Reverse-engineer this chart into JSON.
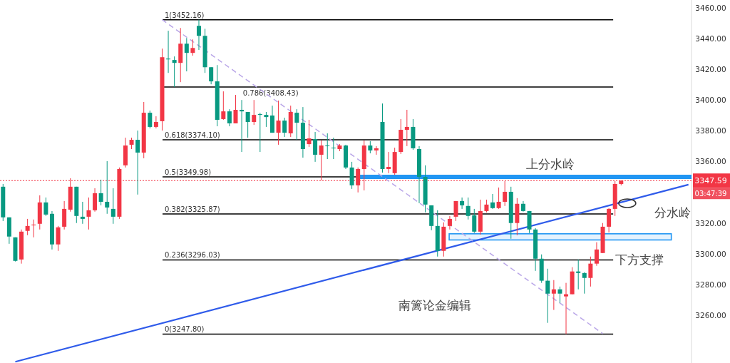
{
  "chart_data": {
    "type": "candlestick",
    "categories": [
      null,
      null,
      null,
      null,
      null,
      null,
      null,
      null,
      null,
      null,
      null,
      null,
      null,
      null,
      null,
      null,
      null,
      null,
      null,
      null,
      null,
      null,
      null,
      null,
      null,
      null,
      null,
      null,
      null,
      null,
      null,
      null,
      null,
      null,
      null,
      null,
      null,
      null,
      null,
      null,
      null,
      null,
      null,
      null,
      null,
      null,
      null,
      null,
      null,
      null,
      null,
      null,
      null,
      null,
      null,
      null,
      null,
      null,
      null,
      null,
      null,
      null,
      null,
      null,
      null,
      null,
      null,
      null,
      null,
      null,
      null,
      null,
      null,
      null,
      null,
      null,
      null,
      null,
      null,
      null,
      null,
      null,
      null,
      null,
      null,
      null,
      null,
      null,
      null,
      null,
      null,
      null,
      null,
      null,
      null,
      null,
      null,
      null,
      null,
      null,
      null,
      null,
      null,
      null,
      null,
      null,
      null,
      null,
      null,
      null,
      null,
      null,
      null
    ],
    "ohlc": [
      [
        3343.6,
        3345.4,
        3321.3,
        3323.7
      ],
      [
        3323.7,
        3323.7,
        3306.5,
        3311.2
      ],
      [
        3310.7,
        3310.7,
        3295.0,
        3295.4
      ],
      [
        3296.3,
        3315.8,
        3293.6,
        3314.4
      ],
      [
        3314.9,
        3322.7,
        3312.1,
        3318.1
      ],
      [
        3318.6,
        3322.3,
        3310.7,
        3319.0
      ],
      [
        3319.5,
        3338.0,
        3315.8,
        3333.4
      ],
      [
        3333.4,
        3336.6,
        3324.6,
        3325.5
      ],
      [
        3326.0,
        3327.8,
        3302.8,
        3306.1
      ],
      [
        3306.1,
        3318.1,
        3301.9,
        3317.2
      ],
      [
        3317.6,
        3334.3,
        3315.8,
        3329.2
      ],
      [
        3328.7,
        3349.1,
        3327.4,
        3343.6
      ],
      [
        3343.6,
        3343.6,
        3320.0,
        3324.6
      ],
      [
        3324.1,
        3333.8,
        3319.5,
        3322.7
      ],
      [
        3324.1,
        3336.6,
        3315.8,
        3328.3
      ],
      [
        3328.3,
        3342.6,
        3327.4,
        3339.4
      ],
      [
        3339.4,
        3348.2,
        3331.5,
        3333.8
      ],
      [
        3333.8,
        3360.2,
        3326.0,
        3330.1
      ],
      [
        3329.2,
        3342.6,
        3319.5,
        3324.1
      ],
      [
        3324.1,
        3356.1,
        3322.7,
        3355.1
      ],
      [
        3357.5,
        3375.5,
        3356.1,
        3370.4
      ],
      [
        3370.9,
        3375.5,
        3368.1,
        3374.1
      ],
      [
        3374.1,
        3380.1,
        3338.5,
        3365.8
      ],
      [
        3365.8,
        3398.7,
        3362.1,
        3391.7
      ],
      [
        3391.7,
        3393.1,
        3381.5,
        3382.5
      ],
      [
        3382.5,
        3389.4,
        3381.5,
        3385.7
      ],
      [
        3386.2,
        3433.4,
        3380.1,
        3427.8
      ],
      [
        3426.9,
        3445.0,
        3417.6,
        3426.4
      ],
      [
        3426.0,
        3428.3,
        3408.4,
        3424.1
      ],
      [
        3424.1,
        3446.8,
        3411.6,
        3436.6
      ],
      [
        3436.6,
        3440.3,
        3418.6,
        3430.6
      ],
      [
        3430.6,
        3439.4,
        3428.8,
        3433.8
      ],
      [
        3448.2,
        3452.2,
        3432.5,
        3441.7
      ],
      [
        3441.7,
        3446.3,
        3417.6,
        3421.3
      ],
      [
        3421.3,
        3421.3,
        3410.2,
        3412.1
      ],
      [
        3412.1,
        3422.7,
        3382.9,
        3387.1
      ],
      [
        3387.6,
        3405.6,
        3387.1,
        3392.6
      ],
      [
        3392.6,
        3394.0,
        3382.9,
        3384.8
      ],
      [
        3384.8,
        3403.3,
        3384.8,
        3393.6
      ],
      [
        3393.6,
        3400.0,
        3366.2,
        3392.6
      ],
      [
        3392.2,
        3392.2,
        3375.5,
        3385.7
      ],
      [
        3385.7,
        3400.0,
        3383.8,
        3390.3
      ],
      [
        3390.8,
        3391.7,
        3366.2,
        3390.3
      ],
      [
        3390.3,
        3392.2,
        3382.5,
        3388.9
      ],
      [
        3389.9,
        3396.3,
        3378.7,
        3378.7
      ],
      [
        3378.7,
        3399.6,
        3370.9,
        3386.6
      ],
      [
        3386.6,
        3388.5,
        3376.0,
        3378.7
      ],
      [
        3378.3,
        3396.3,
        3376.0,
        3392.2
      ],
      [
        3391.7,
        3394.0,
        3374.1,
        3385.2
      ],
      [
        3385.2,
        3395.4,
        3362.5,
        3368.1
      ],
      [
        3371.3,
        3387.1,
        3369.5,
        3375.0
      ],
      [
        3374.6,
        3379.2,
        3359.8,
        3364.4
      ],
      [
        3364.4,
        3373.7,
        3347.7,
        3370.4
      ],
      [
        3370.4,
        3378.3,
        3361.6,
        3370.0
      ],
      [
        3369.0,
        3375.5,
        3361.6,
        3368.6
      ],
      [
        3368.1,
        3371.3,
        3366.7,
        3370.4
      ],
      [
        3370.4,
        3370.9,
        3355.1,
        3356.1
      ],
      [
        3356.1,
        3359.8,
        3342.2,
        3344.5
      ],
      [
        3344.5,
        3356.1,
        3339.9,
        3355.1
      ],
      [
        3355.1,
        3373.7,
        3341.2,
        3370.4
      ],
      [
        3370.4,
        3373.2,
        3365.3,
        3367.2
      ],
      [
        3367.2,
        3370.0,
        3364.4,
        3368.6
      ],
      [
        3385.7,
        3397.7,
        3352.8,
        3355.1
      ],
      [
        3355.1,
        3366.2,
        3352.4,
        3356.5
      ],
      [
        3352.4,
        3369.0,
        3351.4,
        3366.2
      ],
      [
        3366.2,
        3387.6,
        3364.9,
        3380.6
      ],
      [
        3380.6,
        3393.6,
        3370.0,
        3382.5
      ],
      [
        3382.5,
        3387.6,
        3367.6,
        3368.6
      ],
      [
        3368.1,
        3370.0,
        3332.9,
        3350.0
      ],
      [
        3350.0,
        3357.5,
        3326.9,
        3332.0
      ],
      [
        3331.5,
        3331.5,
        3315.3,
        3318.1
      ],
      [
        3318.1,
        3328.3,
        3298.2,
        3301.9
      ],
      [
        3301.9,
        3320.4,
        3298.2,
        3317.6
      ],
      [
        3318.1,
        3324.6,
        3315.8,
        3322.7
      ],
      [
        3324.1,
        3334.3,
        3321.3,
        3334.3
      ],
      [
        3334.3,
        3336.6,
        3329.2,
        3331.5
      ],
      [
        3331.1,
        3336.6,
        3322.3,
        3324.6
      ],
      [
        3325.0,
        3329.2,
        3313.5,
        3314.4
      ],
      [
        3314.4,
        3335.2,
        3312.5,
        3327.8
      ],
      [
        3327.8,
        3335.2,
        3326.9,
        3332.0
      ],
      [
        3333.4,
        3338.9,
        3329.2,
        3329.7
      ],
      [
        3329.7,
        3343.1,
        3329.2,
        3333.8
      ],
      [
        3333.8,
        3347.3,
        3331.1,
        3340.3
      ],
      [
        3340.3,
        3343.6,
        3309.8,
        3320.0
      ],
      [
        3320.0,
        3336.2,
        3312.1,
        3332.5
      ],
      [
        3332.5,
        3334.3,
        3327.4,
        3327.8
      ],
      [
        3327.8,
        3327.8,
        3313.5,
        3315.8
      ],
      [
        3315.8,
        3316.7,
        3288.9,
        3296.8
      ],
      [
        3296.8,
        3299.6,
        3281.1,
        3282.5
      ],
      [
        3282.5,
        3290.3,
        3255.1,
        3274.1
      ],
      [
        3274.1,
        3282.9,
        3263.5,
        3276.9
      ],
      [
        3276.9,
        3278.7,
        3268.1,
        3274.1
      ],
      [
        3272.3,
        3281.1,
        3247.8,
        3273.7
      ],
      [
        3273.7,
        3291.3,
        3273.7,
        3288.5
      ],
      [
        3288.5,
        3296.3,
        3276.9,
        3287.5
      ],
      [
        3287.5,
        3288.0,
        3274.1,
        3284.3
      ],
      [
        3284.3,
        3298.2,
        3278.7,
        3293.6
      ],
      [
        3293.6,
        3307.5,
        3292.2,
        3302.8
      ],
      [
        3300.5,
        3320.0,
        3300.5,
        3317.6
      ],
      [
        3317.6,
        3329.7,
        3313.9,
        3329.2
      ],
      [
        3329.2,
        3347.3,
        3324.6,
        3345.4
      ],
      [
        3345.4,
        3347.7,
        3344.5,
        3347.59
      ],
      null,
      null,
      null,
      null,
      null,
      null,
      null,
      null,
      null,
      null,
      null
    ],
    "series": [
      {
        "type": "line",
        "values": [
          null,
          null,
          3229.8,
          null,
          null,
          null,
          null,
          null,
          null,
          null,
          null,
          null,
          null,
          null,
          null,
          null,
          null,
          null,
          null,
          null,
          null,
          null,
          null,
          null,
          null,
          null,
          null,
          null,
          null,
          null,
          null,
          null,
          null,
          null,
          null,
          null,
          null,
          null,
          null,
          null,
          null,
          null,
          null,
          null,
          null,
          null,
          null,
          null,
          null,
          null,
          null,
          null,
          null,
          null,
          null,
          null,
          null,
          null,
          null,
          null,
          null,
          null,
          null,
          null,
          null,
          null,
          null,
          null,
          null,
          null,
          null,
          null,
          null,
          null,
          null,
          null,
          null,
          null,
          null,
          null,
          null,
          null,
          null,
          null,
          null,
          null,
          null,
          null,
          null,
          null,
          null,
          null,
          null,
          null,
          null,
          null,
          null,
          null,
          null,
          null,
          null,
          null,
          null,
          null,
          null,
          null,
          null,
          null,
          null,
          null,
          null,
          null,
          3345.0
        ],
        "color": "#2f5bea",
        "line_style": "solid"
      },
      {
        "type": "line",
        "values": [
          null,
          null,
          null,
          null,
          null,
          null,
          null,
          null,
          null,
          null,
          null,
          null,
          null,
          null,
          null,
          null,
          null,
          null,
          null,
          null,
          null,
          null,
          null,
          null,
          null,
          null,
          3452.2,
          null,
          null,
          null,
          null,
          null,
          null,
          null,
          null,
          null,
          null,
          null,
          null,
          null,
          null,
          null,
          null,
          null,
          null,
          null,
          null,
          null,
          null,
          null,
          null,
          null,
          null,
          null,
          null,
          null,
          null,
          null,
          null,
          null,
          null,
          null,
          null,
          null,
          null,
          null,
          null,
          null,
          null,
          null,
          null,
          null,
          null,
          null,
          null,
          null,
          null,
          null,
          null,
          null,
          null,
          null,
          null,
          null,
          null,
          null,
          null,
          null,
          null,
          null,
          null,
          null,
          null,
          null,
          null,
          null,
          null,
          null,
          3248.1,
          null,
          null,
          null,
          null,
          null,
          null,
          null,
          null,
          null,
          null,
          null,
          null,
          null,
          null
        ],
        "color": "#b9a6e8",
        "line_style": "dashed"
      }
    ],
    "ylim": [
      3229,
      3465
    ],
    "yticks": [
      {
        "value": 3460,
        "label": "3460.00"
      },
      {
        "value": 3440,
        "label": "3440.00"
      },
      {
        "value": 3420,
        "label": "3420.00"
      },
      {
        "value": 3400,
        "label": "3400.00"
      },
      {
        "value": 3380,
        "label": "3380.00"
      },
      {
        "value": 3360,
        "label": "3360.00"
      },
      {
        "value": 3320,
        "label": "3320.00"
      },
      {
        "value": 3300,
        "label": "3300.00"
      },
      {
        "value": 3280,
        "label": "3280.00"
      },
      {
        "value": 3260,
        "label": "3260.00"
      }
    ],
    "tick_labels": "y",
    "ref_lines": [
      {
        "axis": "y",
        "value": 3452.16,
        "label": "1(3452.16)",
        "color": "#000000"
      },
      {
        "axis": "y",
        "value": 3408.43,
        "label": "0.786(3408.43)",
        "color": "#000000"
      },
      {
        "axis": "y",
        "value": 3374.1,
        "label": "0.618(3374.10)",
        "color": "#000000"
      },
      {
        "axis": "y",
        "value": 3349.98,
        "label": "0.5(3349.98)",
        "color": "#000000"
      },
      {
        "axis": "y",
        "value": 3325.87,
        "label": "0.382(3325.87)",
        "color": "#000000"
      },
      {
        "axis": "y",
        "value": 3296.03,
        "label": "0.236(3296.03)",
        "color": "#000000"
      },
      {
        "axis": "y",
        "value": 3247.8,
        "label": "0(3247.80)",
        "color": "#000000"
      },
      {
        "axis": "y",
        "value": 3350,
        "label": "上分水岭",
        "color": "#2196f3"
      },
      {
        "axis": "y",
        "value": 3347.59,
        "label": "3347.59",
        "color": "#f23645",
        "line_style": "dotted"
      }
    ],
    "bands": [
      {
        "axis": "y",
        "from": 3309,
        "to": 3313,
        "label": "下方支撑",
        "color": "#2196f3"
      }
    ],
    "annotations": [
      "分水岭",
      "南篱论金编辑",
      "03:47:39"
    ]
  }
}
